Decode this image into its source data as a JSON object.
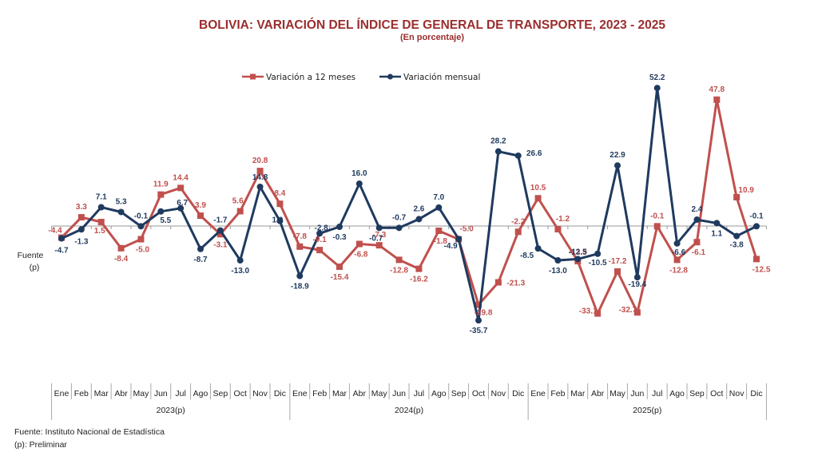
{
  "chart_data": {
    "type": "line",
    "title": "BOLIVIA: VARIACIÓN DEL ÍNDICE DE GENERAL DE TRANSPORTE,  2023 - 2025",
    "subtitle": "(En porcentaje)",
    "xlabel": "",
    "ylabel": "",
    "y_axis_side_labels": [
      "Fuente",
      "(p)"
    ],
    "ylim": [
      -36,
      53
    ],
    "grid": false,
    "legend_position": "top-center",
    "categories": [
      "Ene",
      "Feb",
      "Mar",
      "Abr",
      "May",
      "Jun",
      "Jul",
      "Ago",
      "Sep",
      "Oct",
      "Nov",
      "Dic",
      "Ene",
      "Feb",
      "Mar",
      "Abr",
      "May",
      "Jun",
      "Jul",
      "Ago",
      "Sep",
      "Oct",
      "Nov",
      "Dic",
      "Ene",
      "Feb",
      "Mar",
      "Abr",
      "May",
      "Jun",
      "Jul",
      "Ago",
      "Sep",
      "Oct",
      "Nov",
      "Dic"
    ],
    "year_groups": [
      {
        "label": "2023(p)",
        "count": 12
      },
      {
        "label": "2024(p)",
        "count": 12
      },
      {
        "label": "2025(p)",
        "count": 12
      }
    ],
    "series": [
      {
        "name": "Variación a 12 meses",
        "color": "#c0504d",
        "marker": "square",
        "values": [
          -4.4,
          3.3,
          1.5,
          -8.4,
          -5.0,
          11.9,
          14.4,
          3.9,
          -3.1,
          5.6,
          20.8,
          8.4,
          -7.8,
          -9.1,
          -15.4,
          -6.8,
          -7.3,
          -12.8,
          -16.2,
          -1.8,
          -5.0,
          -29.8,
          -21.3,
          -2.2,
          10.5,
          -1.2,
          -13.3,
          -33.1,
          -17.2,
          -32.7,
          -0.1,
          -12.8,
          -6.1,
          47.8,
          10.9,
          -12.5
        ]
      },
      {
        "name": "Variación mensual",
        "color": "#1f3a5f",
        "marker": "circle",
        "values": [
          -4.7,
          -1.3,
          7.1,
          5.3,
          -0.1,
          5.5,
          6.7,
          -8.7,
          -1.7,
          -13.0,
          14.8,
          1.9,
          -18.9,
          -2.8,
          -0.3,
          16.0,
          -0.7,
          -0.7,
          2.6,
          7.0,
          -4.9,
          -35.7,
          28.2,
          26.6,
          -8.5,
          -13.0,
          -12.5,
          -10.5,
          22.9,
          -19.4,
          52.2,
          -6.6,
          2.4,
          1.1,
          -3.8,
          -0.1
        ]
      }
    ]
  },
  "footnotes": {
    "source": "Fuente: Instituto Nacional de Estadística",
    "preliminary": "(p): Preliminar"
  }
}
